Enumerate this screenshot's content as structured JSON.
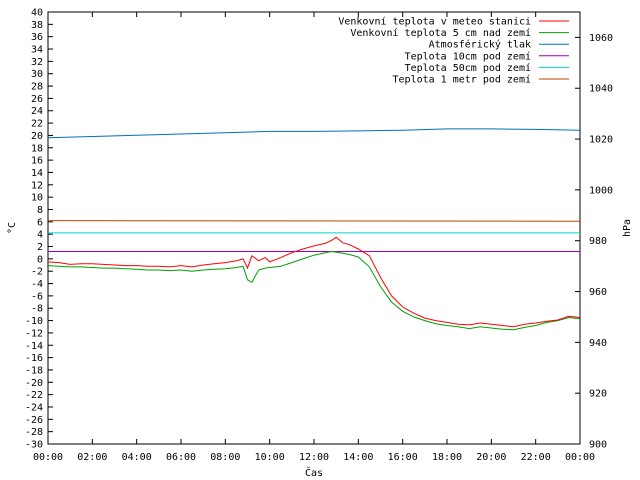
{
  "chart_data": {
    "type": "line",
    "xlabel": "Čas",
    "ylabel_left": "°C",
    "ylabel_right": "hPa",
    "xlim_hours": [
      0,
      24
    ],
    "ylim_left": [
      -30,
      40
    ],
    "ylim_right": [
      900,
      1070
    ],
    "x_ticks": [
      "00:00",
      "02:00",
      "04:00",
      "06:00",
      "08:00",
      "10:00",
      "12:00",
      "14:00",
      "16:00",
      "18:00",
      "20:00",
      "22:00",
      "00:00"
    ],
    "y_left_ticks": [
      40,
      38,
      36,
      34,
      32,
      30,
      28,
      26,
      24,
      22,
      20,
      18,
      16,
      14,
      12,
      10,
      8,
      6,
      4,
      2,
      0,
      -2,
      -4,
      -6,
      -8,
      -10,
      -12,
      -14,
      -16,
      -18,
      -20,
      -22,
      -24,
      -26,
      -28,
      -30
    ],
    "y_right_ticks": [
      1060,
      1040,
      1020,
      1000,
      980,
      960,
      940,
      920,
      900
    ],
    "grid": false,
    "legend_position": "top-right",
    "series": [
      {
        "name": "Venkovní teplota v meteo stanici",
        "color": "#ff0000",
        "axis": "left",
        "x": [
          0,
          0.5,
          1,
          1.5,
          2,
          2.5,
          3,
          3.5,
          4,
          4.5,
          5,
          5.5,
          6,
          6.5,
          7,
          7.5,
          8,
          8.5,
          8.8,
          9,
          9.2,
          9.5,
          9.8,
          10,
          10.5,
          11,
          11.5,
          12,
          12.5,
          12.8,
          13,
          13.3,
          13.6,
          14,
          14.5,
          15,
          15.5,
          16,
          16.5,
          17,
          17.5,
          18,
          18.5,
          19,
          19.5,
          20,
          20.5,
          21,
          21.5,
          22,
          22.5,
          23,
          23.5,
          24
        ],
        "y": [
          -0.5,
          -0.6,
          -0.9,
          -0.8,
          -0.8,
          -0.9,
          -1.0,
          -1.1,
          -1.1,
          -1.2,
          -1.2,
          -1.3,
          -1.1,
          -1.3,
          -1.0,
          -0.8,
          -0.6,
          -0.3,
          0.0,
          -1.5,
          0.5,
          -0.3,
          0.2,
          -0.5,
          0.2,
          1.0,
          1.6,
          2.1,
          2.5,
          3.0,
          3.5,
          2.6,
          2.3,
          1.6,
          0.5,
          -3.0,
          -6.0,
          -7.8,
          -8.8,
          -9.6,
          -10.0,
          -10.3,
          -10.6,
          -10.7,
          -10.4,
          -10.6,
          -10.8,
          -11.0,
          -10.6,
          -10.4,
          -10.1,
          -9.9,
          -9.3,
          -9.5
        ]
      },
      {
        "name": "Venkovní teplota 5 cm nad zemí",
        "color": "#00a000",
        "axis": "left",
        "x": [
          0,
          0.5,
          1,
          1.5,
          2,
          2.5,
          3,
          3.5,
          4,
          4.5,
          5,
          5.5,
          6,
          6.5,
          7,
          7.5,
          8,
          8.5,
          8.8,
          9,
          9.2,
          9.5,
          9.8,
          10,
          10.5,
          11,
          11.5,
          12,
          12.5,
          12.8,
          13,
          13.3,
          13.6,
          14,
          14.5,
          15,
          15.5,
          16,
          16.5,
          17,
          17.5,
          18,
          18.5,
          19,
          19.5,
          20,
          20.5,
          21,
          21.5,
          22,
          22.5,
          23,
          23.5,
          24
        ],
        "y": [
          -1.1,
          -1.2,
          -1.3,
          -1.3,
          -1.4,
          -1.5,
          -1.5,
          -1.6,
          -1.7,
          -1.8,
          -1.8,
          -1.9,
          -1.8,
          -2.0,
          -1.8,
          -1.7,
          -1.6,
          -1.4,
          -1.2,
          -3.4,
          -3.8,
          -1.8,
          -1.5,
          -1.4,
          -1.2,
          -0.6,
          0.0,
          0.6,
          1.0,
          1.2,
          1.1,
          0.9,
          0.7,
          0.3,
          -1.3,
          -4.5,
          -7.0,
          -8.5,
          -9.4,
          -10.0,
          -10.5,
          -10.8,
          -11.0,
          -11.3,
          -11.0,
          -11.2,
          -11.4,
          -11.5,
          -11.1,
          -10.8,
          -10.3,
          -10.0,
          -9.5,
          -9.7
        ]
      },
      {
        "name": "Atmosférický tlak",
        "color": "#0070c0",
        "axis": "right",
        "x": [
          0,
          2,
          4,
          6,
          8,
          10,
          12,
          14,
          16,
          18,
          20,
          22,
          24
        ],
        "y": [
          1020.5,
          1021.0,
          1021.5,
          1022.0,
          1022.5,
          1023.0,
          1023.0,
          1023.2,
          1023.5,
          1024.0,
          1024.0,
          1023.8,
          1023.5
        ]
      },
      {
        "name": "Teplota 10cm pod zemí",
        "color": "#a000c0",
        "axis": "left",
        "x": [
          0,
          24
        ],
        "y": [
          1.2,
          1.2
        ]
      },
      {
        "name": "Teplota 50cm pod zemí",
        "color": "#00d0d0",
        "axis": "left",
        "x": [
          0,
          24
        ],
        "y": [
          4.2,
          4.2
        ]
      },
      {
        "name": "Teplota 1 metr pod zemí",
        "color": "#c04000",
        "axis": "left",
        "x": [
          0,
          24
        ],
        "y": [
          6.2,
          6.1
        ]
      }
    ]
  }
}
